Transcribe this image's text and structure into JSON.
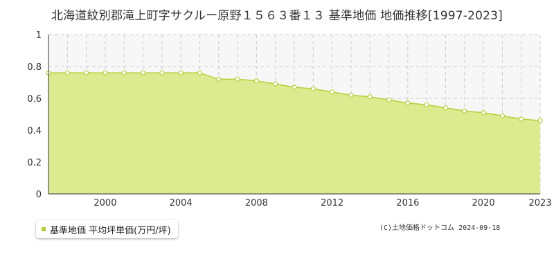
{
  "colors": {
    "fill": "#dcea90",
    "line": "#b2d235",
    "marker": "#b2d235",
    "grid": "#cccccc",
    "plot_bg": "#f7f7f7"
  },
  "chart_data": {
    "type": "area",
    "title": "北海道紋別郡滝上町字サクルー原野１５６３番１３ 基準地価 地価推移[1997-2023]",
    "xlabel": "",
    "ylabel": "",
    "xlim": [
      1997,
      2023
    ],
    "ylim": [
      0,
      1
    ],
    "x_ticks": [
      "2000",
      "2004",
      "2008",
      "2012",
      "2016",
      "2020",
      "2023"
    ],
    "y_ticks": [
      "0",
      "0.2",
      "0.4",
      "0.6",
      "0.8",
      "1"
    ],
    "grid": true,
    "legend_position": "bottom-left",
    "series": [
      {
        "name": "基準地価 平均坪単価(万円/坪)",
        "x": [
          1997,
          1998,
          1999,
          2000,
          2001,
          2002,
          2003,
          2004,
          2005,
          2006,
          2007,
          2008,
          2009,
          2010,
          2011,
          2012,
          2013,
          2014,
          2015,
          2016,
          2017,
          2018,
          2019,
          2020,
          2021,
          2022,
          2023
        ],
        "values": [
          0.76,
          0.76,
          0.76,
          0.76,
          0.76,
          0.76,
          0.76,
          0.76,
          0.76,
          0.72,
          0.72,
          0.71,
          0.69,
          0.67,
          0.66,
          0.64,
          0.62,
          0.61,
          0.59,
          0.57,
          0.56,
          0.54,
          0.52,
          0.51,
          0.49,
          0.47,
          0.46
        ]
      }
    ]
  },
  "copyright": "(C)土地価格ドットコム 2024-09-18"
}
